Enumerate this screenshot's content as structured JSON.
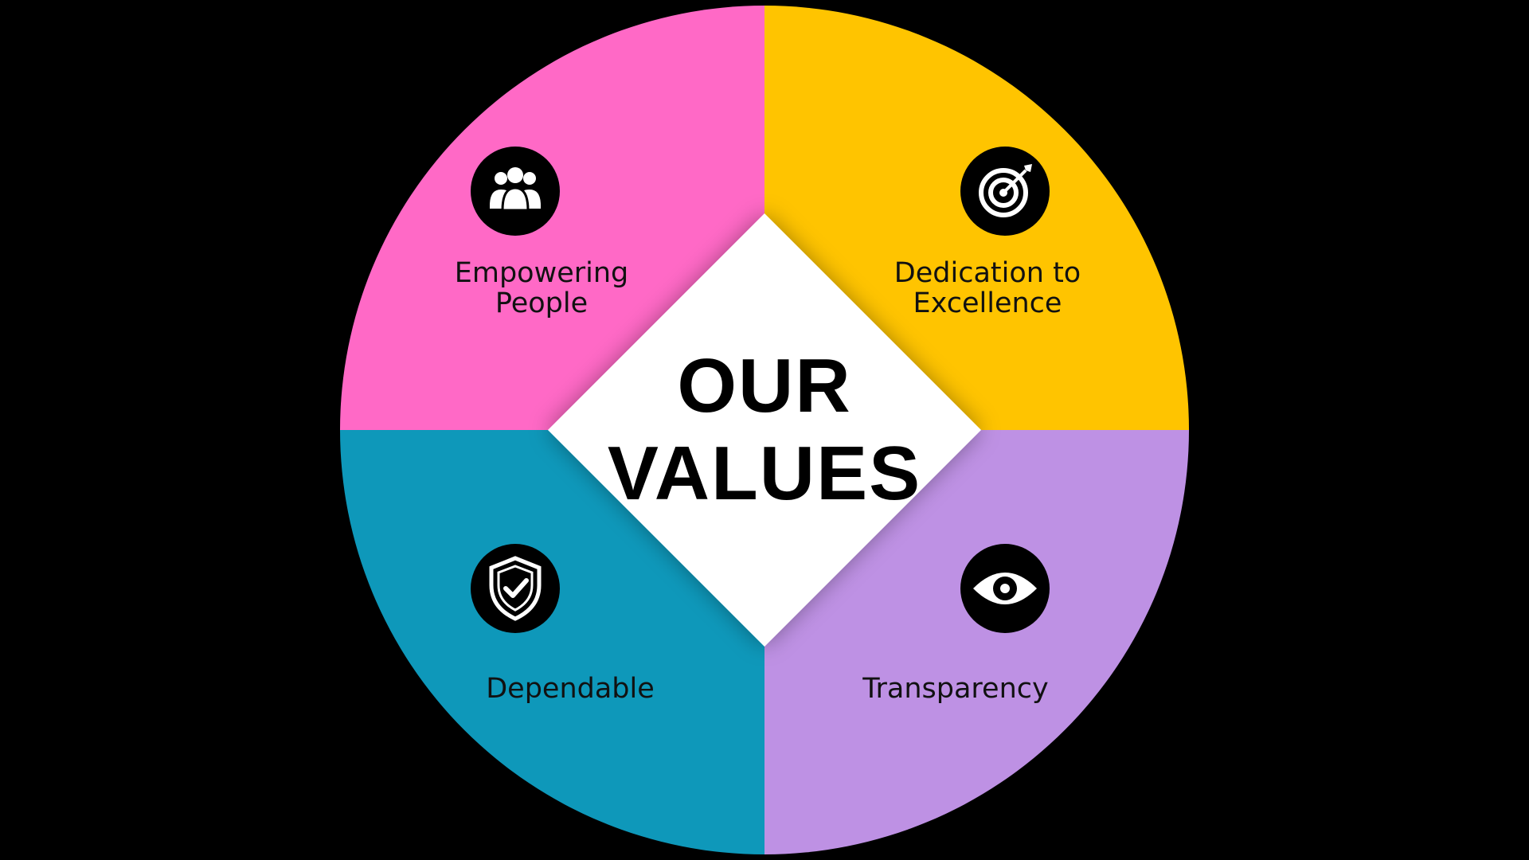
{
  "title": {
    "line1": "OUR",
    "line2": "VALUES"
  },
  "quadrants": [
    {
      "id": "empowering",
      "line1": "Empowering",
      "line2": "People",
      "icon": "people-group-icon",
      "color": "#FF69C6"
    },
    {
      "id": "dedication",
      "line1": "Dedication to",
      "line2": "Excellence",
      "icon": "target-arrow-icon",
      "color": "#FFC400"
    },
    {
      "id": "dependable",
      "line1": "Dependable",
      "line2": "",
      "icon": "shield-check-icon",
      "color": "#0E98BA"
    },
    {
      "id": "transparency",
      "line1": "Transparency",
      "line2": "",
      "icon": "eye-icon",
      "color": "#BE91E4"
    }
  ],
  "colors": {
    "background": "#000000",
    "diamond": "#FFFFFF",
    "icon_circle": "#000000",
    "icon_glyph": "#FFFFFF"
  }
}
